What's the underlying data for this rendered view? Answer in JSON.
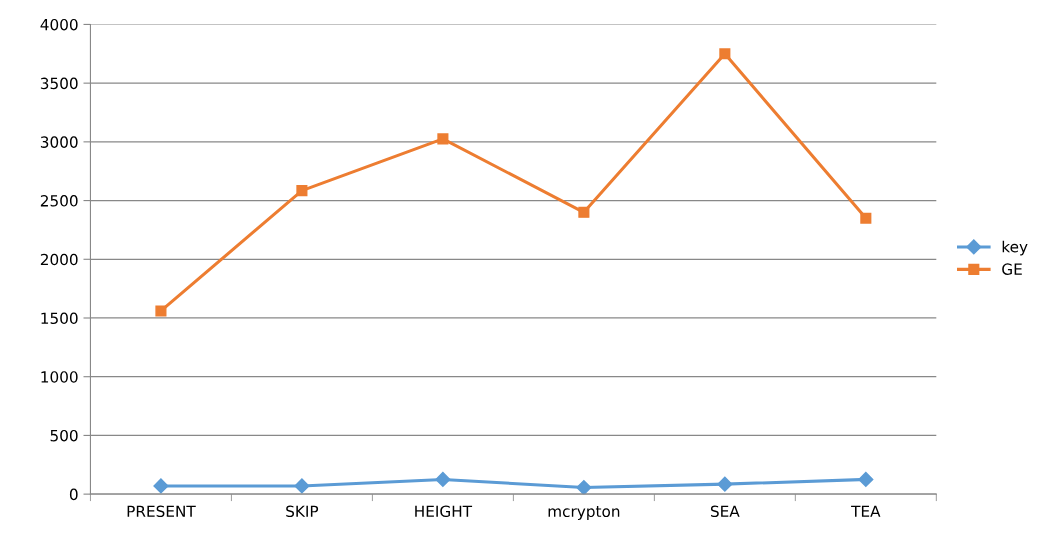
{
  "chart_data": {
    "type": "line",
    "categories": [
      "PRESENT",
      "SKIP",
      "HEIGHT",
      "mcrypton",
      "SEA",
      "TEA"
    ],
    "series": [
      {
        "name": "key",
        "color": "#5b9bd5",
        "marker": "diamond",
        "values": [
          70,
          70,
          125,
          56,
          85,
          125
        ]
      },
      {
        "name": "GE",
        "color": "#ed7d31",
        "marker": "square",
        "values": [
          1560,
          2585,
          3025,
          2400,
          3750,
          2350
        ]
      }
    ],
    "ylim": [
      0,
      4000
    ],
    "yticks": [
      0,
      500,
      1000,
      1500,
      2000,
      2500,
      3000,
      3500,
      4000
    ],
    "grid": "y",
    "legend": "right",
    "line_style": "solid"
  }
}
